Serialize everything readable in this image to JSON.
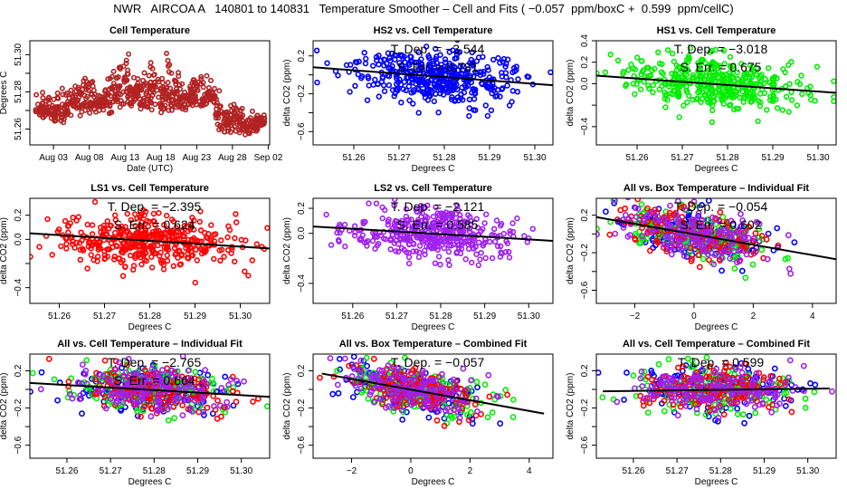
{
  "figure": {
    "title": "NWR   AIRCOA A   140801 to 140831   Temperature Smoother – Cell and Fits ( −0.057  ppm/boxC +  0.599  ppm/cellC)"
  },
  "colors": {
    "hs2": "#0000ff",
    "hs1": "#00ee00",
    "ls1": "#ff0000",
    "ls2": "#a020f0",
    "cell": "#b22222",
    "fit": "#000000"
  },
  "chart_data": [
    {
      "id": "cell-temperature",
      "type": "scatter",
      "title": "Cell Temperature",
      "xlabel": "Date (UTC)",
      "ylabel": "Degrees C",
      "x_tick_labels": [
        "Aug 03",
        "Aug 08",
        "Aug 13",
        "Aug 18",
        "Aug 23",
        "Aug 28",
        "Sep 02"
      ],
      "x_tick_days": [
        3,
        8,
        13,
        18,
        23,
        28,
        33
      ],
      "xlim": [
        -0.3,
        33.2
      ],
      "y_tick_labels": [
        "51.26",
        "51.28",
        "51.30"
      ],
      "y_ticks": [
        51.26,
        51.27,
        51.28,
        51.29,
        51.3
      ],
      "ylim": [
        51.2515,
        51.3075
      ],
      "series": [
        {
          "name": "Cell",
          "color_key": "cell",
          "envelope_day": [
            1,
            2,
            3,
            4,
            5,
            6,
            7,
            8,
            9,
            10,
            11,
            12,
            13,
            14,
            15,
            16,
            17,
            18,
            19,
            20,
            21,
            22,
            23,
            24,
            25,
            26,
            27,
            28,
            29,
            30,
            31,
            32
          ],
          "envelope_low": [
            51.267,
            51.265,
            51.264,
            51.263,
            51.267,
            51.268,
            51.267,
            51.268,
            51.268,
            51.27,
            51.268,
            51.271,
            51.272,
            51.271,
            51.27,
            51.27,
            51.27,
            51.268,
            51.268,
            51.27,
            51.27,
            51.271,
            51.272,
            51.272,
            51.273,
            51.259,
            51.258,
            51.258,
            51.258,
            51.257,
            51.258,
            51.26
          ],
          "envelope_high": [
            51.281,
            51.281,
            51.282,
            51.284,
            51.284,
            51.285,
            51.29,
            51.295,
            51.287,
            51.285,
            51.291,
            51.297,
            51.306,
            51.293,
            51.29,
            51.293,
            51.302,
            51.295,
            51.302,
            51.291,
            51.287,
            51.286,
            51.289,
            51.29,
            51.287,
            51.287,
            51.272,
            51.275,
            51.272,
            51.27,
            51.27,
            51.268
          ]
        }
      ]
    },
    {
      "id": "hs2-vs-cell",
      "type": "scatter",
      "title": "HS2 vs. Cell Temperature",
      "xlabel": "Degrees C",
      "ylabel": "delta CO2 (ppm)",
      "x_tick_labels": [
        "51.26",
        "51.27",
        "51.28",
        "51.29",
        "51.30"
      ],
      "xlim": [
        51.251,
        51.304
      ],
      "y_tick_labels": [
        "−0.6",
        "−0.2",
        "0.2"
      ],
      "y_ticks": [
        -0.6,
        -0.4,
        -0.2,
        0.0,
        0.2
      ],
      "ylim": [
        -0.74,
        0.36
      ],
      "annotation": [
        "T. Dep. =  −3.544",
        "S. Err. =  0.781"
      ],
      "fit": {
        "slope": -3.544,
        "x": [
          51.251,
          51.304
        ],
        "y": [
          0.08,
          -0.11
        ]
      },
      "series": [
        {
          "name": "HS2",
          "color_key": "hs2",
          "spread": 0.14,
          "center_x": 51.278
        }
      ]
    },
    {
      "id": "hs1-vs-cell",
      "type": "scatter",
      "title": "HS1 vs. Cell Temperature",
      "xlabel": "Degrees C",
      "ylabel": "delta CO2 (ppm)",
      "x_tick_labels": [
        "51.26",
        "51.27",
        "51.28",
        "51.29",
        "51.30"
      ],
      "xlim": [
        51.251,
        51.304
      ],
      "y_tick_labels": [
        "−0.4",
        "0.0",
        "0.2",
        "0.4"
      ],
      "y_ticks": [
        -0.4,
        -0.2,
        0.0,
        0.2,
        0.4
      ],
      "ylim": [
        -0.57,
        0.4
      ],
      "annotation": [
        "T. Dep. =  −3.018",
        "S. Err. =  0.675"
      ],
      "fit": {
        "slope": -3.018,
        "x": [
          51.251,
          51.304
        ],
        "y": [
          0.075,
          -0.085
        ]
      },
      "series": [
        {
          "name": "HS1",
          "color_key": "hs1",
          "spread": 0.12,
          "center_x": 51.278
        }
      ]
    },
    {
      "id": "ls1-vs-cell",
      "type": "scatter",
      "title": "LS1 vs. Cell Temperature",
      "xlabel": "Degrees C",
      "ylabel": "delta CO2 (ppm)",
      "x_tick_labels": [
        "51.26",
        "51.27",
        "51.28",
        "51.29",
        "51.30"
      ],
      "xlim": [
        51.2535,
        51.3065
      ],
      "y_tick_labels": [
        "−0.4",
        "0.0",
        "0.2"
      ],
      "y_ticks": [
        -0.4,
        -0.2,
        0.0,
        0.2
      ],
      "ylim": [
        -0.53,
        0.34
      ],
      "annotation": [
        "T. Dep. =  −2.395",
        "S. Err. =  0.624"
      ],
      "fit": {
        "slope": -2.395,
        "x": [
          51.2535,
          51.3065
        ],
        "y": [
          0.05,
          -0.075
        ]
      },
      "series": [
        {
          "name": "LS1",
          "color_key": "ls1",
          "spread": 0.11,
          "center_x": 51.279
        }
      ]
    },
    {
      "id": "ls2-vs-cell",
      "type": "scatter",
      "title": "LS2 vs. Cell Temperature",
      "xlabel": "Degrees C",
      "ylabel": "delta CO2 (ppm)",
      "x_tick_labels": [
        "51.26",
        "51.27",
        "51.28",
        "51.29",
        "51.30"
      ],
      "xlim": [
        51.251,
        51.3055
      ],
      "y_tick_labels": [
        "−0.4",
        "0.0",
        "0.2"
      ],
      "y_ticks": [
        -0.4,
        -0.2,
        0.0,
        0.2
      ],
      "ylim": [
        -0.56,
        0.28
      ],
      "annotation": [
        "T. Dep. =  −2.121",
        "S. Err. =  0.585"
      ],
      "fit": {
        "slope": -2.121,
        "x": [
          51.251,
          51.3055
        ],
        "y": [
          0.055,
          -0.06
        ]
      },
      "series": [
        {
          "name": "LS2",
          "color_key": "ls2",
          "spread": 0.1,
          "center_x": 51.279
        }
      ]
    },
    {
      "id": "all-vs-box-individual",
      "type": "scatter",
      "title": "All vs. Box Temperature – Individual Fit",
      "xlabel": "Degrees C",
      "ylabel": "delta CO2 (ppm)",
      "x_tick_labels": [
        "−2",
        "0",
        "2",
        "4"
      ],
      "x_ticks": [
        -2,
        0,
        2,
        4
      ],
      "xlim": [
        -3.3,
        4.8
      ],
      "y_tick_labels": [
        "−0.6",
        "−0.2",
        "0.2"
      ],
      "y_ticks": [
        -0.6,
        -0.4,
        -0.2,
        0.0,
        0.2
      ],
      "ylim": [
        -0.74,
        0.38
      ],
      "annotation": [
        "T. Dep. =  −0.054",
        "S. Err. =  0.602"
      ],
      "fit": {
        "slope": -0.054,
        "x": [
          -3.3,
          4.8
        ],
        "y": [
          0.18,
          -0.27
        ]
      },
      "series": [
        {
          "name": "HS2",
          "color_key": "hs2"
        },
        {
          "name": "HS1",
          "color_key": "hs1"
        },
        {
          "name": "LS1",
          "color_key": "ls1"
        },
        {
          "name": "LS2",
          "color_key": "ls2"
        }
      ]
    },
    {
      "id": "all-vs-cell-individual",
      "type": "scatter",
      "title": "All vs. Cell Temperature – Individual Fit",
      "xlabel": "Degrees C",
      "ylabel": "delta CO2 (ppm)",
      "x_tick_labels": [
        "51.26",
        "51.27",
        "51.28",
        "51.29",
        "51.30"
      ],
      "xlim": [
        51.2515,
        51.3065
      ],
      "y_tick_labels": [
        "−0.6",
        "−0.2",
        "0.2"
      ],
      "y_ticks": [
        -0.6,
        -0.4,
        -0.2,
        0.0,
        0.2
      ],
      "ylim": [
        -0.74,
        0.38
      ],
      "annotation": [
        "T. Dep. =  −2.765",
        "S. Err. =  0.664"
      ],
      "fit": {
        "slope": -2.765,
        "x": [
          51.2515,
          51.3065
        ],
        "y": [
          0.07,
          -0.08
        ]
      },
      "series": [
        {
          "name": "HS2",
          "color_key": "hs2"
        },
        {
          "name": "HS1",
          "color_key": "hs1"
        },
        {
          "name": "LS1",
          "color_key": "ls1"
        },
        {
          "name": "LS2",
          "color_key": "ls2"
        }
      ]
    },
    {
      "id": "all-vs-box-combined",
      "type": "scatter",
      "title": "All vs. Box Temperature – Combined Fit",
      "xlabel": "Degrees C",
      "ylabel": "delta CO2 (ppm)",
      "x_tick_labels": [
        "−2",
        "0",
        "2",
        "4"
      ],
      "x_ticks": [
        -2,
        0,
        2,
        4
      ],
      "xlim": [
        -3.3,
        4.8
      ],
      "y_tick_labels": [
        "−0.6",
        "−0.2",
        "0.2"
      ],
      "y_ticks": [
        -0.6,
        -0.4,
        -0.2,
        0.0,
        0.2
      ],
      "ylim": [
        -0.74,
        0.38
      ],
      "annotation": [
        "T. Dep. =  −0.057"
      ],
      "fit": {
        "slope": -0.057,
        "x": [
          -3.0,
          4.5
        ],
        "y": [
          0.17,
          -0.26
        ]
      },
      "series": [
        {
          "name": "HS2",
          "color_key": "hs2"
        },
        {
          "name": "HS1",
          "color_key": "hs1"
        },
        {
          "name": "LS1",
          "color_key": "ls1"
        },
        {
          "name": "LS2",
          "color_key": "ls2"
        }
      ]
    },
    {
      "id": "all-vs-cell-combined",
      "type": "scatter",
      "title": "All vs. Cell Temperature – Combined Fit",
      "xlabel": "Degrees C",
      "ylabel": "delta CO2 (ppm)",
      "x_tick_labels": [
        "51.26",
        "51.27",
        "51.28",
        "51.29",
        "51.30"
      ],
      "xlim": [
        51.2515,
        51.3065
      ],
      "y_tick_labels": [
        "−0.6",
        "−0.2",
        "0.2"
      ],
      "y_ticks": [
        -0.6,
        -0.4,
        -0.2,
        0.0,
        0.2
      ],
      "ylim": [
        -0.74,
        0.38
      ],
      "annotation": [
        "T. Dep. =  0.599"
      ],
      "fit": {
        "slope": 0.599,
        "x": [
          51.253,
          51.305
        ],
        "y": [
          -0.02,
          0.01
        ]
      },
      "series": [
        {
          "name": "HS2",
          "color_key": "hs2"
        },
        {
          "name": "HS1",
          "color_key": "hs1"
        },
        {
          "name": "LS1",
          "color_key": "ls1"
        },
        {
          "name": "LS2",
          "color_key": "ls2"
        }
      ]
    }
  ]
}
